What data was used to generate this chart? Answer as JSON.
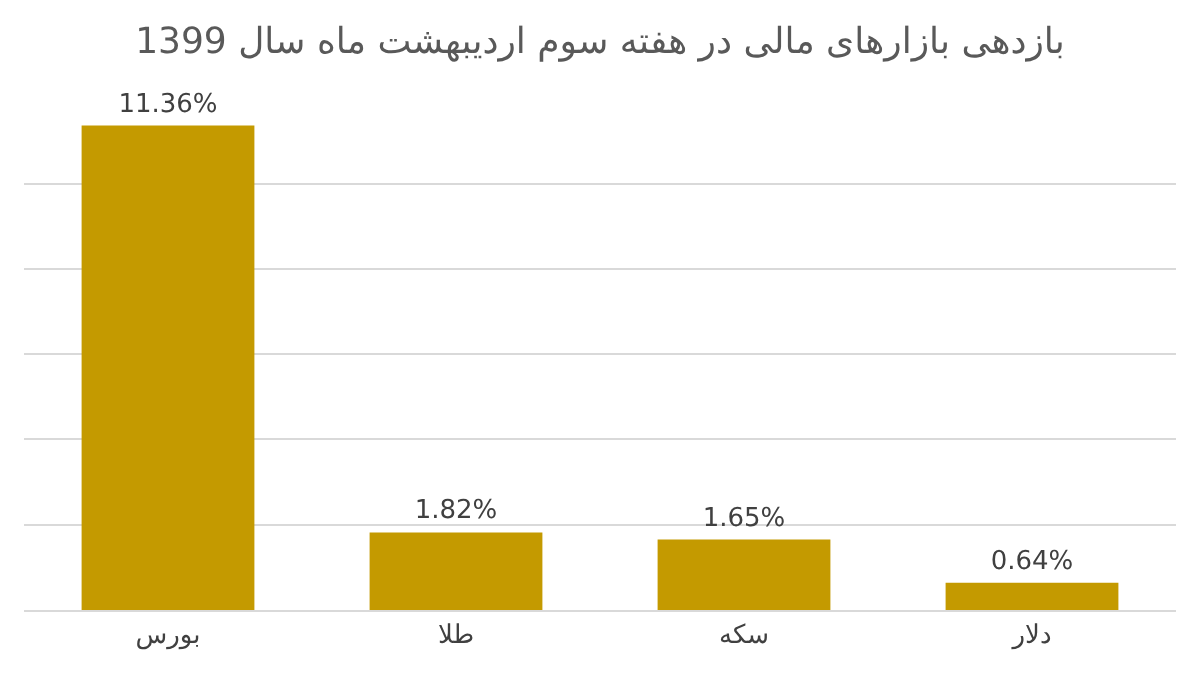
{
  "chart_data": {
    "type": "bar",
    "title": "بازدهی بازارهای مالی در هفته سوم اردیبهشت ماه سال 1399",
    "categories": [
      "بورس",
      "طلا",
      "سکه",
      "دلار"
    ],
    "values": [
      11.36,
      1.82,
      1.65,
      0.64
    ],
    "value_labels": [
      "11.36%",
      "1.82%",
      "1.65%",
      "0.64%"
    ],
    "color": "#c49a00",
    "yticks": [
      {
        "value": 0,
        "label": null
      },
      {
        "value": 2,
        "label": null
      },
      {
        "value": 4,
        "label": null
      },
      {
        "value": 6,
        "label": null
      },
      {
        "value": 8,
        "label": null
      },
      {
        "value": 10,
        "label": null
      }
    ],
    "grid": "y",
    "tick_labels": "x"
  }
}
